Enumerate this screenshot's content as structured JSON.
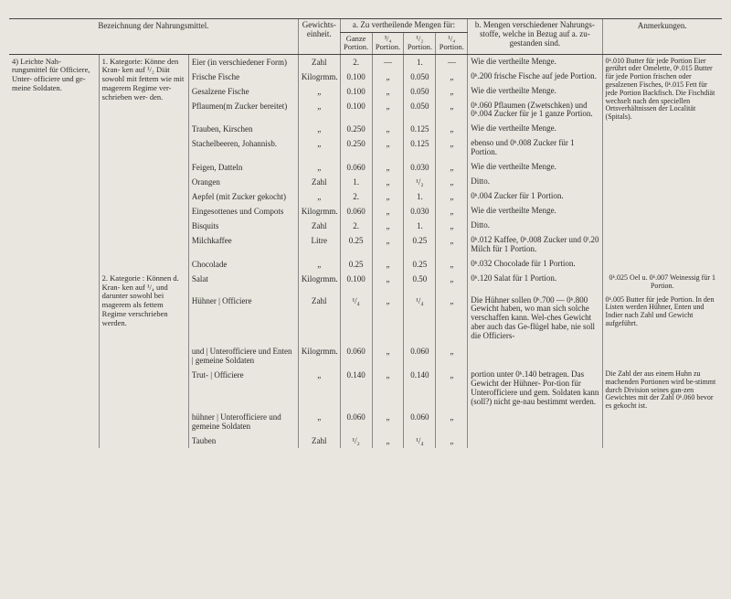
{
  "headers": {
    "bezeichnung": "Bezeichnung der Nahrungsmittel.",
    "gewichts": "Gewichts-\neinheit.",
    "a_title": "a.\nZu vertheilende Mengen für:",
    "ganze": "Ganze\nPortion.",
    "p34": "³/₄\nPortion.",
    "p12": "¹/₂\nPortion.",
    "p14": "¹/₄\nPortion.",
    "b_title": "b.\nMengen verschiedener Nahrungs-\nstoffe, welche in Bezug auf a. zu-\ngestanden sind.",
    "anm": "Anmerkungen."
  },
  "leftcat": {
    "cat4": "4) Leichte Nah-\nrungsmittel für\nOfficiere, Unter-\nofficiere und ge-\nmeine Soldaten.",
    "sub1": "1. Kategorie:\nKönne den Kran-\nken auf ¹/₂ Diät\nsowohl mit fettem\nwie mit magerem\nRegime ver-\nschrieben wer-\nden.",
    "sub2": "2. Kategorie :\nKönnen d. Kran-\nken auf ¹/₄ und\ndarunter sowohl\nbei magerem als\nfettem Regime\nverschrieben\nwerden."
  },
  "rows": [
    {
      "item": "Eier (in verschiedener Form)",
      "unit": "Zahl",
      "g": "2.",
      "p34": "—",
      "p12": "1.",
      "p14": "—",
      "meng": "Wie die vertheilte Menge."
    },
    {
      "item": "Frische Fische",
      "unit": "Kilogrmm.",
      "g": "0.100",
      "p34": "„",
      "p12": "0.050",
      "p14": "„",
      "meng": "0ᵏ.200 frische Fische auf jede Portion."
    },
    {
      "item": "Gesalzene Fische",
      "unit": "„",
      "g": "0.100",
      "p34": "„",
      "p12": "0.050",
      "p14": "„",
      "meng": "Wie die vertheilte Menge."
    },
    {
      "item": "Pflaumen(m Zucker bereitet)",
      "unit": "„",
      "g": "0.100",
      "p34": "„",
      "p12": "0.050",
      "p14": "„",
      "meng": "0ᵏ.060 Pflaumen (Zwetschken) und 0ᵏ.004 Zucker für je 1 ganze Portion."
    },
    {
      "item": "Trauben, Kirschen",
      "unit": "„",
      "g": "0.250",
      "p34": "„",
      "p12": "0.125",
      "p14": "„",
      "meng": "Wie die vertheilte Menge."
    },
    {
      "item": "Stachelbeeren, Johannisb.",
      "unit": "„",
      "g": "0.250",
      "p34": "„",
      "p12": "0.125",
      "p14": "„",
      "meng": "ebenso und 0ᵏ.008 Zucker für 1 Portion."
    },
    {
      "item": "Feigen, Datteln",
      "unit": "„",
      "g": "0.060",
      "p34": "„",
      "p12": "0.030",
      "p14": "„",
      "meng": "Wie die vertheilte Menge."
    },
    {
      "item": "Orangen",
      "unit": "Zahl",
      "g": "1.",
      "p34": "„",
      "p12": "¹/₂",
      "p14": "„",
      "meng": "Ditto."
    },
    {
      "item": "Aepfel (mit Zucker gekocht)",
      "unit": "„",
      "g": "2.",
      "p34": "„",
      "p12": "1.",
      "p14": "„",
      "meng": "0ᵏ.004 Zucker für 1 Portion."
    },
    {
      "item": "Eingesottenes und Compots",
      "unit": "Kilogrmm.",
      "g": "0.060",
      "p34": "„",
      "p12": "0.030",
      "p14": "„",
      "meng": "Wie die vertheilte Menge."
    },
    {
      "item": "Bisquits",
      "unit": "Zahl",
      "g": "2.",
      "p34": "„",
      "p12": "1.",
      "p14": "„",
      "meng": "Ditto."
    },
    {
      "item": "Milchkaffee",
      "unit": "Litre",
      "g": "0.25",
      "p34": "„",
      "p12": "0.25",
      "p14": "„",
      "meng": "0ᵏ.012 Kaffee, 0ᵏ.008 Zucker und 0ˡ.20 Milch für 1 Portion."
    },
    {
      "item": "Chocolade",
      "unit": "„",
      "g": "0.25",
      "p34": "„",
      "p12": "0.25",
      "p14": "„",
      "meng": "0ᵏ.032 Chocolade für 1 Portion."
    },
    {
      "item": "Salat",
      "unit": "Kilogrmm.",
      "g": "0.100",
      "p34": "„",
      "p12": "0.50",
      "p14": "„",
      "meng": "0ᵏ.120 Salat für 1 Portion."
    },
    {
      "item": "Hühner | Officiere",
      "unit": "Zahl",
      "g": "¹/₄",
      "p34": "„",
      "p12": "¹/₄",
      "p14": "„",
      "meng": "Die Hühner sollen 0ᵏ.700 — 0ᵏ.800 Gewicht haben, wo man sich solche verschaffen kann. Wel-ches Gewicht aber auch das Ge-flügel habe, nie soll die Officiers-"
    },
    {
      "item": "und | Unterofficiere und Enten | gemeine Soldaten",
      "unit": "Kilogrmm.",
      "g": "0.060",
      "p34": "„",
      "p12": "0.060",
      "p14": "„",
      "meng": ""
    },
    {
      "item": "Trut- | Officiere",
      "unit": "„",
      "g": "0.140",
      "p34": "„",
      "p12": "0.140",
      "p14": "„",
      "meng": "portion unter 0ᵏ.140 betragen. Das Gewicht der Hühner- Por-tion für Unterofficiere und gem. Soldaten kann (soll?) nicht ge-nau bestimmt werden."
    },
    {
      "item": "hühner | Unterofficiere und gemeine Soldaten",
      "unit": "„",
      "g": "0.060",
      "p34": "„",
      "p12": "0.060",
      "p14": "„",
      "meng": ""
    },
    {
      "item": "Tauben",
      "unit": "Zahl",
      "g": "¹/₂",
      "p34": "„",
      "p12": "¹/₄",
      "p14": "„",
      "meng": ""
    }
  ],
  "anmerkungen": {
    "a1": "0ᵏ.010 Butter für jede Portion Eier gerührt oder Omelette, 0ᵏ.015 Butter für jede Portion frischen oder gesalzenen Fisches, 0ᵏ.015 Fett für jede Portion Backfisch. Die Fischdiät wechselt nach den speciellen Ortsverhältnissen der Localität (Spitals).",
    "a2": "0ᵏ.025 Oel u. 0ᵏ.007 Weinessig für 1 Portion.",
    "a3": "0ᵏ.005 Butter für jede Portion. In den Listen werden Hühner, Enten und Indier nach Zahl und Gewicht aufgeführt.",
    "a4": "Die Zahl der aus einem Huhn zu machenden Portionen wird be-stimmt durch Division seines gan-zen Gewichtes mit der Zahl 0ᵏ.060 bevor es gekocht ist."
  }
}
